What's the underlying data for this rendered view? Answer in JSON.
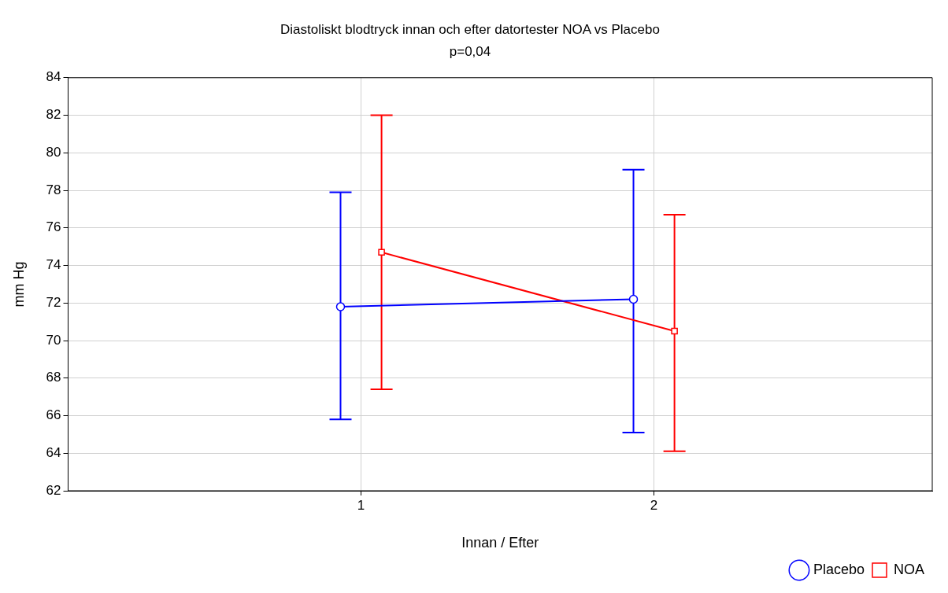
{
  "chart_data": {
    "type": "line",
    "title": "Diastoliskt blodtryck innan och efter datortester NOA vs Placebo",
    "subtitle": "p=0,04",
    "xlabel": "Innan / Efter",
    "ylabel": "mm Hg",
    "xlim": [
      0,
      2.95
    ],
    "xticks": [
      1,
      2
    ],
    "ylim": [
      62,
      84
    ],
    "yticks": [
      62,
      64,
      66,
      68,
      70,
      72,
      74,
      76,
      78,
      80,
      82,
      84
    ],
    "series": [
      {
        "name": "Placebo",
        "color": "#0000ff",
        "marker": "circle",
        "x": [
          0.93,
          1.93
        ],
        "values": [
          71.8,
          72.2
        ],
        "errors": [
          [
            65.8,
            77.9
          ],
          [
            65.1,
            79.1
          ]
        ]
      },
      {
        "name": "NOA",
        "color": "#ff0000",
        "marker": "square",
        "x": [
          1.07,
          2.07
        ],
        "values": [
          74.7,
          70.5
        ],
        "errors": [
          [
            67.4,
            82.0
          ],
          [
            64.1,
            76.7
          ]
        ]
      }
    ],
    "grid": true,
    "legend": "bottom right",
    "line_style": "solid"
  }
}
